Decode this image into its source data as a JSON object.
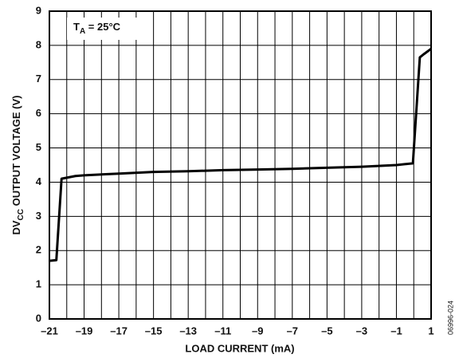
{
  "chart_data": {
    "type": "line",
    "annotation_parts": [
      "T",
      "A",
      " = 25°C"
    ],
    "y_label_parts": [
      "DV",
      "CC",
      " OUTPUT VOLTAGE (V)"
    ],
    "x_label": "LOAD CURRENT (mA)",
    "figure_code": "06996-024",
    "x": [
      -21,
      -20.6,
      -20.3,
      -19.5,
      -19,
      -17,
      -15,
      -13,
      -11,
      -9,
      -7,
      -5,
      -3,
      -1,
      -0.05,
      0.35,
      0.6,
      1
    ],
    "series": [
      {
        "color": "#000000",
        "values": [
          1.7,
          1.72,
          4.1,
          4.18,
          4.2,
          4.25,
          4.3,
          4.32,
          4.35,
          4.37,
          4.39,
          4.42,
          4.45,
          4.5,
          4.55,
          7.65,
          7.75,
          7.9
        ]
      }
    ],
    "xlim": [
      -21,
      1
    ],
    "ylim": [
      0,
      9
    ],
    "xticks": [
      {
        "value": -21,
        "label": "–21"
      },
      {
        "value": -19,
        "label": "–19"
      },
      {
        "value": -17,
        "label": "–17"
      },
      {
        "value": -15,
        "label": "–15"
      },
      {
        "value": -13,
        "label": "–13"
      },
      {
        "value": -11,
        "label": "–11"
      },
      {
        "value": -9,
        "label": "–9"
      },
      {
        "value": -7,
        "label": "–7"
      },
      {
        "value": -5,
        "label": "–5"
      },
      {
        "value": -3,
        "label": "–3"
      },
      {
        "value": -1,
        "label": "–1"
      },
      1
    ],
    "xminor_ticks": [
      -20,
      -18,
      -16,
      -14,
      -12,
      -10,
      -8,
      -6,
      -4,
      -2,
      0
    ],
    "yticks": [
      0,
      1,
      2,
      3,
      4,
      5,
      6,
      7,
      8,
      9
    ],
    "grid": true
  }
}
